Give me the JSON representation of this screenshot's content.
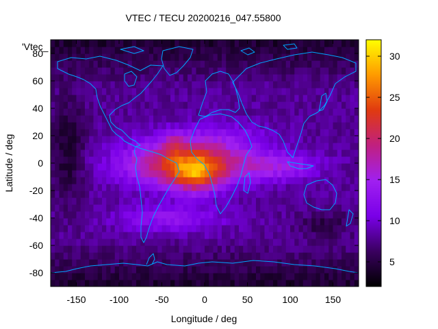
{
  "chart_data": {
    "type": "heatmap",
    "title": "VTEC / TECU 20200216_047.55800",
    "xlabel": "Longitude / deg",
    "ylabel": "Latitude / deg",
    "xlim": [
      -180,
      180
    ],
    "ylim": [
      -90,
      90
    ],
    "x_ticks": [
      -150,
      -100,
      -50,
      0,
      50,
      100,
      150
    ],
    "y_ticks": [
      -80,
      -60,
      -40,
      -20,
      0,
      20,
      40,
      60,
      80
    ],
    "colorbar": {
      "range": [
        2,
        32
      ],
      "ticks": [
        5,
        10,
        15,
        20,
        25,
        30
      ],
      "stops": [
        "#000000",
        "#3a0060",
        "#7a00e8",
        "#a020f0",
        "#c02080",
        "#e03a10",
        "#ff9a00",
        "#ffff00"
      ]
    },
    "key_label": "'Vtec_",
    "data_summary": {
      "background_tecu": 8,
      "polar_tecu": 4,
      "peak": {
        "lon": -10,
        "lat": -10,
        "tecu": 32
      },
      "secondary_peak": {
        "lon": -35,
        "lat": 15,
        "tecu": 27
      }
    }
  },
  "colors": {
    "coast": "#00a6ff",
    "frame": "#000000"
  }
}
